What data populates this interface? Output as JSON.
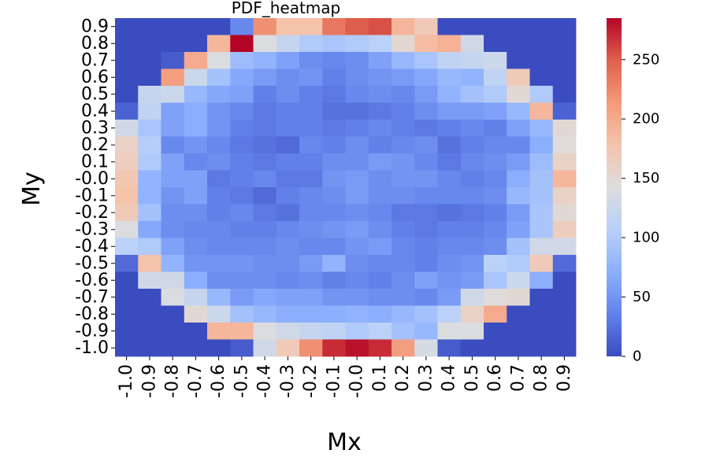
{
  "chart_data": {
    "type": "heatmap",
    "title": "PDF_heatmap",
    "xlabel": "Mx",
    "ylabel": "My",
    "x_tick_labels": [
      "-1.0",
      "-0.9",
      "-0.8",
      "-0.7",
      "-0.6",
      "-0.5",
      "-0.4",
      "-0.3",
      "-0.2",
      "-0.1",
      "-0.0",
      "0.1",
      "0.2",
      "0.3",
      "0.4",
      "0.5",
      "0.6",
      "0.7",
      "0.8",
      "0.9"
    ],
    "y_tick_labels_top_to_bottom": [
      "0.9",
      "0.8",
      "0.7",
      "0.6",
      "0.5",
      "0.4",
      "0.3",
      "0.2",
      "0.1",
      "-0.0",
      "-0.1",
      "-0.2",
      "-0.3",
      "-0.4",
      "-0.5",
      "-0.6",
      "-0.7",
      "-0.8",
      "-0.9",
      "-1.0"
    ],
    "colormap": "coolwarm",
    "colorbar": {
      "min": 0,
      "max": 285,
      "ticks": [
        0,
        50,
        100,
        150,
        200,
        250
      ]
    },
    "grid": false,
    "values_top_to_bottom": [
      [
        0,
        0,
        0,
        0,
        0,
        40,
        220,
        180,
        180,
        235,
        250,
        255,
        190,
        170,
        0,
        0,
        0,
        0,
        0,
        0
      ],
      [
        0,
        0,
        0,
        0,
        190,
        285,
        140,
        120,
        100,
        95,
        100,
        110,
        150,
        185,
        195,
        130,
        0,
        0,
        0,
        0
      ],
      [
        0,
        0,
        10,
        200,
        140,
        85,
        75,
        60,
        45,
        40,
        45,
        60,
        80,
        95,
        115,
        120,
        125,
        0,
        0,
        0
      ],
      [
        0,
        0,
        210,
        125,
        90,
        65,
        55,
        45,
        50,
        35,
        45,
        50,
        55,
        65,
        80,
        75,
        115,
        170,
        0,
        0
      ],
      [
        0,
        120,
        125,
        80,
        65,
        60,
        35,
        45,
        35,
        30,
        40,
        45,
        40,
        55,
        75,
        90,
        100,
        150,
        100,
        0
      ],
      [
        15,
        115,
        60,
        70,
        50,
        40,
        30,
        35,
        35,
        25,
        25,
        30,
        35,
        45,
        55,
        55,
        60,
        80,
        190,
        15
      ],
      [
        130,
        95,
        60,
        70,
        50,
        35,
        30,
        35,
        35,
        30,
        35,
        40,
        35,
        30,
        35,
        40,
        35,
        60,
        80,
        150
      ],
      [
        160,
        105,
        40,
        50,
        40,
        30,
        25,
        20,
        40,
        35,
        45,
        35,
        40,
        45,
        25,
        35,
        40,
        40,
        70,
        145
      ],
      [
        165,
        100,
        60,
        40,
        45,
        35,
        30,
        35,
        35,
        45,
        45,
        55,
        50,
        40,
        30,
        40,
        45,
        55,
        85,
        160
      ],
      [
        175,
        75,
        60,
        60,
        30,
        35,
        40,
        30,
        30,
        50,
        55,
        45,
        50,
        50,
        40,
        35,
        40,
        70,
        90,
        190
      ],
      [
        180,
        75,
        50,
        60,
        35,
        30,
        20,
        35,
        40,
        45,
        55,
        45,
        45,
        40,
        40,
        40,
        45,
        80,
        90,
        160
      ],
      [
        170,
        90,
        45,
        45,
        35,
        40,
        30,
        25,
        40,
        40,
        45,
        40,
        30,
        30,
        25,
        30,
        35,
        55,
        95,
        150
      ],
      [
        140,
        65,
        45,
        40,
        40,
        35,
        35,
        40,
        45,
        50,
        55,
        45,
        35,
        30,
        35,
        35,
        40,
        60,
        95,
        165
      ],
      [
        110,
        100,
        60,
        45,
        40,
        40,
        40,
        45,
        40,
        40,
        50,
        55,
        40,
        35,
        40,
        40,
        45,
        90,
        130,
        130
      ],
      [
        20,
        180,
        75,
        50,
        50,
        50,
        45,
        45,
        55,
        75,
        45,
        40,
        40,
        35,
        45,
        50,
        110,
        100,
        170,
        20
      ],
      [
        0,
        130,
        130,
        70,
        45,
        45,
        45,
        40,
        45,
        35,
        40,
        35,
        45,
        60,
        50,
        55,
        95,
        125,
        70,
        0
      ],
      [
        0,
        0,
        140,
        120,
        80,
        55,
        65,
        60,
        60,
        50,
        50,
        45,
        45,
        40,
        55,
        130,
        145,
        150,
        0,
        0
      ],
      [
        0,
        0,
        0,
        150,
        125,
        90,
        80,
        70,
        70,
        70,
        75,
        70,
        80,
        90,
        110,
        160,
        200,
        0,
        0,
        0
      ],
      [
        0,
        0,
        0,
        0,
        190,
        190,
        140,
        130,
        120,
        115,
        100,
        110,
        90,
        80,
        140,
        140,
        0,
        0,
        0,
        0
      ],
      [
        0,
        0,
        0,
        0,
        0,
        10,
        130,
        170,
        220,
        270,
        280,
        270,
        210,
        135,
        10,
        0,
        0,
        0,
        0,
        0
      ]
    ]
  }
}
